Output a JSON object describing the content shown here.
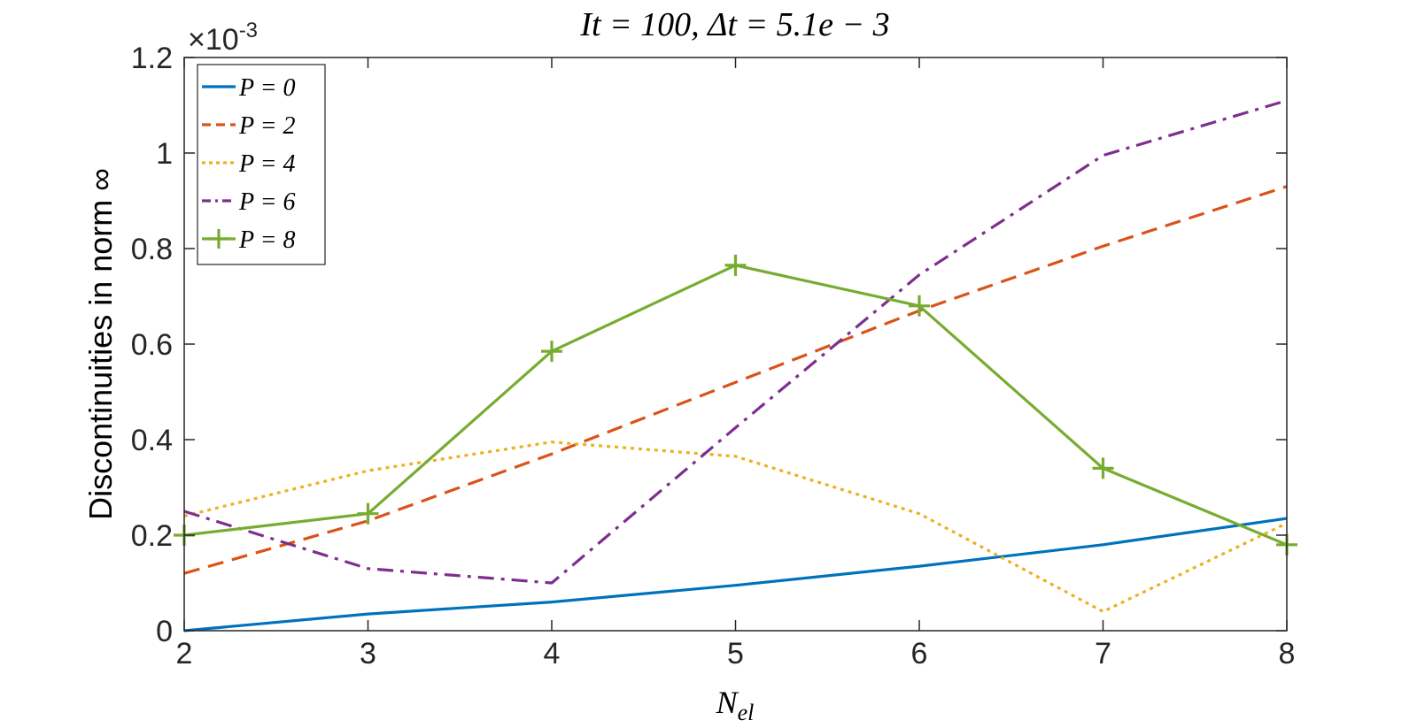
{
  "chart_data": {
    "type": "line",
    "title": "It = 100, Δt = 5.1e − 3",
    "xlabel": "N",
    "xlabel_subscript": "el",
    "ylabel": "Discontinuities in norm ∞",
    "y_multiplier": "×10",
    "y_multiplier_exponent": "-3",
    "xlim": [
      2,
      8
    ],
    "ylim": [
      0,
      1.2
    ],
    "x_ticks": [
      "2",
      "3",
      "4",
      "5",
      "6",
      "7",
      "8"
    ],
    "y_ticks": [
      "0",
      "0.2",
      "0.4",
      "0.6",
      "0.8",
      "1",
      "1.2"
    ],
    "grid": false,
    "legend_position": "top-left",
    "x": [
      2,
      3,
      4,
      5,
      6,
      7,
      8
    ],
    "series": [
      {
        "name": "P = 0",
        "color": "#0072BD",
        "style": "solid",
        "marker": "none",
        "values": [
          0.0,
          0.035,
          0.06,
          0.095,
          0.135,
          0.18,
          0.235
        ]
      },
      {
        "name": "P = 2",
        "color": "#D95319",
        "style": "dashed",
        "marker": "none",
        "values": [
          0.12,
          0.23,
          0.37,
          0.52,
          0.67,
          0.805,
          0.93
        ]
      },
      {
        "name": "P = 4",
        "color": "#EDB120",
        "style": "dotted",
        "marker": "none",
        "values": [
          0.24,
          0.335,
          0.395,
          0.365,
          0.245,
          0.04,
          0.225
        ]
      },
      {
        "name": "P = 6",
        "color": "#7E2F8E",
        "style": "dashdot",
        "marker": "none",
        "values": [
          0.25,
          0.13,
          0.1,
          0.425,
          0.745,
          0.995,
          1.11
        ]
      },
      {
        "name": "P = 8",
        "color": "#77AC30",
        "style": "solid",
        "marker": "plus",
        "values": [
          0.2,
          0.245,
          0.585,
          0.765,
          0.68,
          0.34,
          0.18
        ]
      }
    ]
  }
}
